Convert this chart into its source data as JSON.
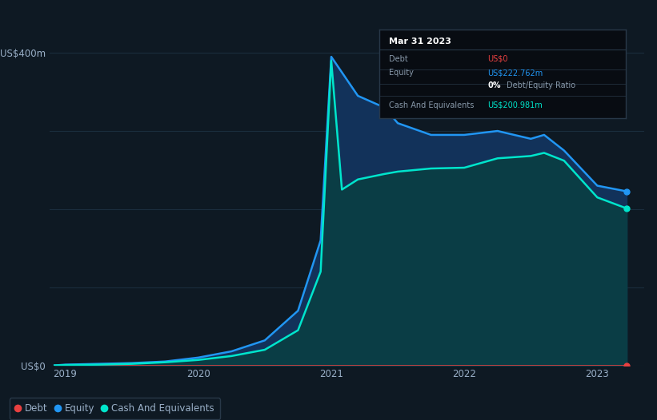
{
  "bg_color": "#0e1923",
  "plot_bg_color": "#0e1923",
  "years": [
    2018.92,
    2019.0,
    2019.25,
    2019.5,
    2019.75,
    2020.0,
    2020.25,
    2020.5,
    2020.75,
    2020.92,
    2021.0,
    2021.08,
    2021.2,
    2021.4,
    2021.5,
    2021.75,
    2022.0,
    2022.25,
    2022.5,
    2022.6,
    2022.75,
    2023.0,
    2023.22
  ],
  "equity": [
    0,
    1,
    2,
    3,
    5,
    10,
    18,
    32,
    70,
    160,
    395,
    375,
    345,
    330,
    310,
    295,
    295,
    300,
    290,
    295,
    275,
    230,
    222.762
  ],
  "cash": [
    0,
    0.5,
    1,
    2,
    4,
    7,
    12,
    20,
    45,
    120,
    390,
    225,
    238,
    245,
    248,
    252,
    253,
    265,
    268,
    272,
    262,
    215,
    200.981
  ],
  "debt": [
    0,
    0,
    0,
    0,
    0,
    0,
    0,
    0,
    0,
    0,
    0,
    0,
    0,
    0,
    0,
    0,
    0,
    0,
    0,
    0,
    0,
    0,
    0
  ],
  "ylim": [
    0,
    430
  ],
  "yticks": [
    0,
    100,
    200,
    300,
    400
  ],
  "ytick_labels": [
    "US$0",
    "",
    "",
    "",
    "US$400m"
  ],
  "xtick_labels": [
    "2019",
    "2020",
    "2021",
    "2022",
    "2023"
  ],
  "xtick_positions": [
    2019,
    2020,
    2021,
    2022,
    2023
  ],
  "equity_fill_color": "#12325a",
  "equity_line_color": "#2196f3",
  "cash_fill_color": "#0a3d45",
  "cash_line_color": "#00e5cc",
  "debt_color": "#e84040",
  "tooltip_bg": "#080c12",
  "tooltip_border": "#283848",
  "tooltip_title": "Mar 31 2023",
  "legend_items": [
    {
      "label": "Debt",
      "color": "#e84040"
    },
    {
      "label": "Equity",
      "color": "#2196f3"
    },
    {
      "label": "Cash And Equivalents",
      "color": "#00e5cc"
    }
  ],
  "grid_color": "#1a2d3d",
  "label_color": "#9ab0c8"
}
